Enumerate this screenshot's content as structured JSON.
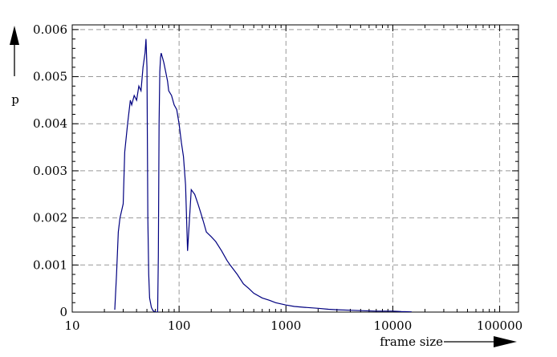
{
  "chart_data": {
    "type": "line",
    "title": "",
    "xlabel": "frame size",
    "ylabel": "p",
    "x_scale": "log",
    "xlim": [
      10,
      150000
    ],
    "ylim": [
      0,
      0.0061
    ],
    "x_ticks": [
      10,
      100,
      1000,
      10000,
      100000
    ],
    "x_tick_labels": [
      "10",
      "100",
      "1000",
      "10000",
      "100000"
    ],
    "y_ticks": [
      0,
      0.001,
      0.002,
      0.003,
      0.004,
      0.005,
      0.006
    ],
    "y_tick_labels": [
      "0",
      "0.001",
      "0.002",
      "0.003",
      "0.004",
      "0.005",
      "0.006"
    ],
    "grid": "dashed, major ticks",
    "line_color": "#000080",
    "series": [
      {
        "x": [
          25,
          26,
          27,
          28,
          30,
          31,
          33,
          35,
          36,
          38,
          40,
          42,
          44,
          46,
          48,
          49,
          50,
          51,
          52,
          53,
          55,
          57,
          60,
          63,
          64,
          65,
          66,
          67,
          68,
          70,
          72,
          75,
          78,
          80,
          85,
          90,
          95,
          100,
          105,
          110,
          115,
          120,
          130,
          140,
          150,
          160,
          170,
          180,
          200,
          220,
          250,
          280,
          300,
          350,
          400,
          450,
          500,
          600,
          700,
          800,
          1000,
          1200,
          1500,
          2000,
          2500,
          3000,
          4000,
          5000,
          7000,
          10000,
          12000,
          15000
        ],
        "y": [
          5e-05,
          0.0008,
          0.0017,
          0.002,
          0.0023,
          0.0034,
          0.004,
          0.0045,
          0.0044,
          0.0046,
          0.0045,
          0.0048,
          0.0047,
          0.0052,
          0.0055,
          0.0058,
          0.0052,
          0.002,
          0.0008,
          0.0003,
          0.0001,
          3e-05,
          0.0,
          0.0,
          0.0012,
          0.004,
          0.0051,
          0.0054,
          0.0055,
          0.0054,
          0.0053,
          0.0051,
          0.0049,
          0.0047,
          0.0046,
          0.0044,
          0.0043,
          0.004,
          0.0036,
          0.0033,
          0.0027,
          0.0013,
          0.0026,
          0.0025,
          0.0023,
          0.0021,
          0.0019,
          0.0017,
          0.0016,
          0.0015,
          0.0013,
          0.0011,
          0.001,
          0.0008,
          0.0006,
          0.0005,
          0.0004,
          0.0003,
          0.00025,
          0.0002,
          0.00015,
          0.00012,
          0.0001,
          8e-05,
          6e-05,
          5e-05,
          4e-05,
          3e-05,
          2e-05,
          2e-05,
          1e-05,
          5e-06
        ]
      }
    ]
  }
}
